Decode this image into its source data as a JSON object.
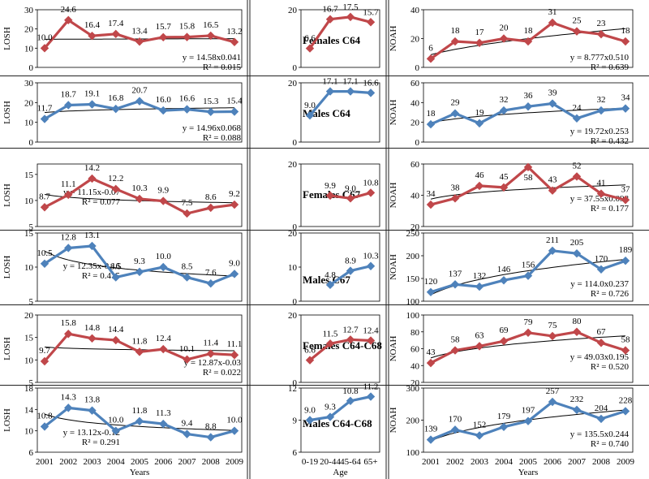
{
  "colors": {
    "Females": "#c0474a",
    "Males": "#4e82bb",
    "trend": "#000000"
  },
  "bottom_axis": {
    "years": [
      "2001",
      "2002",
      "2003",
      "2004",
      "2005",
      "2006",
      "2007",
      "2008",
      "2009"
    ],
    "years_label": "Years",
    "ages": [
      "0-19",
      "20-44",
      "45-64",
      "65+"
    ],
    "age_label": "Age"
  },
  "chart_data": [
    {
      "id": "f64_losh",
      "type": "line",
      "sex": "Females",
      "ylabel": "LOSH",
      "ylim": [
        0,
        30
      ],
      "yticks": [
        0,
        10,
        20,
        30
      ],
      "x": [
        "2001",
        "2002",
        "2003",
        "2004",
        "2005",
        "2006",
        "2007",
        "2008",
        "2009"
      ],
      "values": [
        10.0,
        24.6,
        16.4,
        17.4,
        13.4,
        15.7,
        15.8,
        16.5,
        13.2
      ],
      "labels": [
        "10.0",
        "24.6",
        "16.4",
        "17.4",
        "13.4",
        "15.7",
        "15.8",
        "16.5",
        "13.2"
      ],
      "trend_model": "linear",
      "trend": [
        14.58,
        0.041
      ],
      "equation": "y = 14.58x0.041",
      "r2": "R² = 0.015"
    },
    {
      "id": "f64_age",
      "type": "line",
      "sex": "Females",
      "title": "Females C64",
      "ylim": [
        0,
        20
      ],
      "yticks": [
        0,
        20
      ],
      "x": [
        "0-19",
        "20-44",
        "45-64",
        "65+"
      ],
      "values": [
        6.6,
        16.7,
        17.5,
        15.7
      ],
      "labels": [
        "6.6",
        "16.7",
        "17.5",
        "15.7"
      ]
    },
    {
      "id": "f64_noah",
      "type": "line",
      "sex": "Females",
      "ylabel": "NOAH",
      "ylim": [
        0,
        40
      ],
      "yticks": [
        0,
        20,
        40
      ],
      "x": [
        "2001",
        "2002",
        "2003",
        "2004",
        "2005",
        "2006",
        "2007",
        "2008",
        "2009"
      ],
      "values": [
        6,
        18,
        17,
        20,
        18,
        31,
        25,
        23,
        18
      ],
      "labels": [
        "6",
        "18",
        "17",
        "20",
        "18",
        "31",
        "25",
        "23",
        "18"
      ],
      "trend_model": "power",
      "trend": [
        8.777,
        0.51
      ],
      "equation": "y = 8.777x0.510",
      "r2": "R² = 0.639"
    },
    {
      "id": "m64_losh",
      "type": "line",
      "sex": "Males",
      "ylabel": "LOSH",
      "ylim": [
        0,
        30
      ],
      "yticks": [
        0,
        10,
        20,
        30
      ],
      "x": [
        "2001",
        "2002",
        "2003",
        "2004",
        "2005",
        "2006",
        "2007",
        "2008",
        "2009"
      ],
      "values": [
        11.7,
        18.7,
        19.1,
        16.8,
        20.7,
        16.0,
        16.6,
        15.3,
        15.4
      ],
      "labels": [
        "11.7",
        "18.7",
        "19.1",
        "16.8",
        "20.7",
        "16.0",
        "16.6",
        "15.3",
        "15.4"
      ],
      "trend_model": "power",
      "trend": [
        14.96,
        0.068
      ],
      "equation": "y = 14.96x0.068",
      "r2": "R² = 0.088"
    },
    {
      "id": "m64_age",
      "type": "line",
      "sex": "Males",
      "title": "Males C64",
      "ylim": [
        0,
        20
      ],
      "yticks": [
        0,
        20
      ],
      "x": [
        "0-19",
        "20-44",
        "45-64",
        "65+"
      ],
      "values": [
        9.0,
        17.1,
        17.1,
        16.6
      ],
      "labels": [
        "9.0",
        "17.1",
        "17.1",
        "16.6"
      ]
    },
    {
      "id": "m64_noah",
      "type": "line",
      "sex": "Males",
      "ylabel": "NOAH",
      "ylim": [
        0,
        60
      ],
      "yticks": [
        0,
        20,
        40,
        60
      ],
      "x": [
        "2001",
        "2002",
        "2003",
        "2004",
        "2005",
        "2006",
        "2007",
        "2008",
        "2009"
      ],
      "values": [
        18,
        29,
        19,
        32,
        36,
        39,
        24,
        32,
        34
      ],
      "labels": [
        "18",
        "29",
        "19",
        "32",
        "36",
        "39",
        "24",
        "32",
        "34"
      ],
      "trend_model": "power",
      "trend": [
        19.72,
        0.253
      ],
      "equation": "y = 19.72x0.253",
      "r2": "R² = 0.432"
    },
    {
      "id": "f67_losh",
      "type": "line",
      "sex": "Females",
      "ylabel": "LOSH",
      "ylim": [
        5,
        17
      ],
      "yticks": [
        5,
        10,
        15
      ],
      "x": [
        "2001",
        "2002",
        "2003",
        "2004",
        "2005",
        "2006",
        "2007",
        "2008",
        "2009"
      ],
      "values": [
        8.7,
        11.1,
        14.2,
        12.2,
        10.3,
        9.9,
        7.5,
        8.6,
        9.2
      ],
      "labels": [
        "8.7",
        "11.1",
        "14.2",
        "12.2",
        "10.3",
        "9.9",
        "7.5",
        "8.6",
        "9.2"
      ],
      "trend_model": "power",
      "trend": [
        11.15,
        -0.07
      ],
      "equation": "y = 11.15x-0.07",
      "r2": "R² = 0.077"
    },
    {
      "id": "f67_age",
      "type": "line",
      "sex": "Females",
      "title": "Females C67",
      "ylim": [
        0,
        20
      ],
      "yticks": [
        0,
        20
      ],
      "x": [
        "0-19",
        "20-44",
        "45-64",
        "65+"
      ],
      "values": [
        null,
        9.9,
        9.0,
        10.8
      ],
      "labels": [
        "",
        "9.9",
        "9.0",
        "10.8"
      ]
    },
    {
      "id": "f67_noah",
      "type": "line",
      "sex": "Females",
      "ylabel": "NOAH",
      "ylim": [
        20,
        60
      ],
      "yticks": [
        20,
        40,
        60
      ],
      "x": [
        "2001",
        "2002",
        "2003",
        "2004",
        "2005",
        "2006",
        "2007",
        "2008",
        "2009"
      ],
      "values": [
        34,
        38,
        46,
        45,
        58,
        43,
        52,
        41,
        37
      ],
      "labels": [
        "34",
        "38",
        "46",
        "45",
        "58",
        "43",
        "52",
        "41",
        "37"
      ],
      "trend_model": "power",
      "trend": [
        37.55,
        0.098
      ],
      "equation": "y = 37.55x0.098",
      "r2": "R² = 0.177"
    },
    {
      "id": "m67_losh",
      "type": "line",
      "sex": "Males",
      "ylabel": "LOSH",
      "ylim": [
        5,
        15
      ],
      "yticks": [
        5,
        10,
        15
      ],
      "x": [
        "2001",
        "2002",
        "2003",
        "2004",
        "2005",
        "2006",
        "2007",
        "2008",
        "2009"
      ],
      "values": [
        10.5,
        12.8,
        13.1,
        8.5,
        9.3,
        10.0,
        8.5,
        7.6,
        9.0
      ],
      "labels": [
        "10.5",
        "12.8",
        "13.1",
        "8.5",
        "9.3",
        "10.0",
        "8.5",
        "7.6",
        "9.0"
      ],
      "trend_model": "power",
      "trend": [
        12.35,
        -0.16
      ],
      "equation": "y = 12.35x-0.16",
      "r2": "R² = 0.415"
    },
    {
      "id": "m67_age",
      "type": "line",
      "sex": "Males",
      "title": "Males C67",
      "ylim": [
        0,
        20
      ],
      "yticks": [
        0,
        10,
        20
      ],
      "x": [
        "0-19",
        "20-44",
        "45-64",
        "65+"
      ],
      "values": [
        null,
        4.8,
        8.9,
        10.3
      ],
      "labels": [
        "",
        "4.8",
        "8.9",
        "10.3"
      ]
    },
    {
      "id": "m67_noah",
      "type": "line",
      "sex": "Males",
      "ylabel": "NOAH",
      "ylim": [
        100,
        250
      ],
      "yticks": [
        100,
        150,
        200,
        250
      ],
      "x": [
        "2001",
        "2002",
        "2003",
        "2004",
        "2005",
        "2006",
        "2007",
        "2008",
        "2009"
      ],
      "values": [
        120,
        137,
        132,
        146,
        156,
        211,
        205,
        170,
        189
      ],
      "labels": [
        "120",
        "137",
        "132",
        "146",
        "156",
        "211",
        "205",
        "170",
        "189"
      ],
      "trend_model": "power",
      "trend": [
        114.0,
        0.237
      ],
      "equation": "y = 114.0x0.237",
      "r2": "R² = 0.726"
    },
    {
      "id": "fall_losh",
      "type": "line",
      "sex": "Females",
      "ylabel": "LOSH",
      "ylim": [
        5,
        20
      ],
      "yticks": [
        5,
        10,
        15,
        20
      ],
      "x": [
        "2001",
        "2002",
        "2003",
        "2004",
        "2005",
        "2006",
        "2007",
        "2008",
        "2009"
      ],
      "values": [
        9.7,
        15.8,
        14.8,
        14.4,
        11.8,
        12.4,
        10.1,
        11.4,
        11.1
      ],
      "labels": [
        "9.7",
        "15.8",
        "14.8",
        "14.4",
        "11.8",
        "12.4",
        "10.1",
        "11.4",
        "11.1"
      ],
      "trend_model": "power",
      "trend": [
        12.87,
        -0.03
      ],
      "equation": "y = 12.87x-0.03",
      "r2": "R² = 0.022"
    },
    {
      "id": "fall_age",
      "type": "line",
      "sex": "Females",
      "title": "Females C64-C68",
      "ylim": [
        0,
        20
      ],
      "yticks": [
        0,
        20
      ],
      "x": [
        "0-19",
        "20-44",
        "45-64",
        "65+"
      ],
      "values": [
        6.6,
        11.5,
        12.7,
        12.4
      ],
      "labels": [
        "6.6",
        "11.5",
        "12.7",
        "12.4"
      ]
    },
    {
      "id": "fall_noah",
      "type": "line",
      "sex": "Females",
      "ylabel": "NOAH",
      "ylim": [
        20,
        100
      ],
      "yticks": [
        20,
        40,
        60,
        80,
        100
      ],
      "x": [
        "2001",
        "2002",
        "2003",
        "2004",
        "2005",
        "2006",
        "2007",
        "2008",
        "2009"
      ],
      "values": [
        43,
        58,
        63,
        69,
        79,
        75,
        80,
        67,
        58
      ],
      "labels": [
        "43",
        "58",
        "63",
        "69",
        "79",
        "75",
        "80",
        "67",
        "58"
      ],
      "trend_model": "power",
      "trend": [
        49.03,
        0.195
      ],
      "equation": "y = 49.03x0.195",
      "r2": "R² = 0.520"
    },
    {
      "id": "mall_losh",
      "type": "line",
      "sex": "Males",
      "ylabel": "LOSH",
      "ylim": [
        6,
        18
      ],
      "yticks": [
        6,
        10,
        14,
        18
      ],
      "x": [
        "2001",
        "2002",
        "2003",
        "2004",
        "2005",
        "2006",
        "2007",
        "2008",
        "2009"
      ],
      "values": [
        10.8,
        14.3,
        13.8,
        10.0,
        11.8,
        11.3,
        9.4,
        8.8,
        10.0
      ],
      "labels": [
        "10.8",
        "14.3",
        "13.8",
        "10.0",
        "11.8",
        "11.3",
        "9.4",
        "8.8",
        "10.0"
      ],
      "trend_model": "power",
      "trend": [
        13.12,
        -0.12
      ],
      "equation": "y = 13.12x-0.12",
      "r2": "R² = 0.291"
    },
    {
      "id": "mall_age",
      "type": "line",
      "sex": "Males",
      "title": "Males C64-C68",
      "ylim": [
        6,
        12
      ],
      "yticks": [
        6,
        9,
        12
      ],
      "x": [
        "0-19",
        "20-44",
        "45-64",
        "65+"
      ],
      "values": [
        9.0,
        9.3,
        10.8,
        11.2
      ],
      "labels": [
        "9.0",
        "9.3",
        "10.8",
        "11.2"
      ]
    },
    {
      "id": "mall_noah",
      "type": "line",
      "sex": "Males",
      "ylabel": "NOAH",
      "ylim": [
        100,
        300
      ],
      "yticks": [
        100,
        200,
        300
      ],
      "x": [
        "2001",
        "2002",
        "2003",
        "2004",
        "2005",
        "2006",
        "2007",
        "2008",
        "2009"
      ],
      "values": [
        139,
        170,
        152,
        179,
        197,
        257,
        232,
        204,
        228
      ],
      "labels": [
        "139",
        "170",
        "152",
        "179",
        "197",
        "257",
        "232",
        "204",
        "228"
      ],
      "trend_model": "power",
      "trend": [
        135.5,
        0.244
      ],
      "equation": "y = 135.5x0.244",
      "r2": "R² = 0.740"
    }
  ]
}
